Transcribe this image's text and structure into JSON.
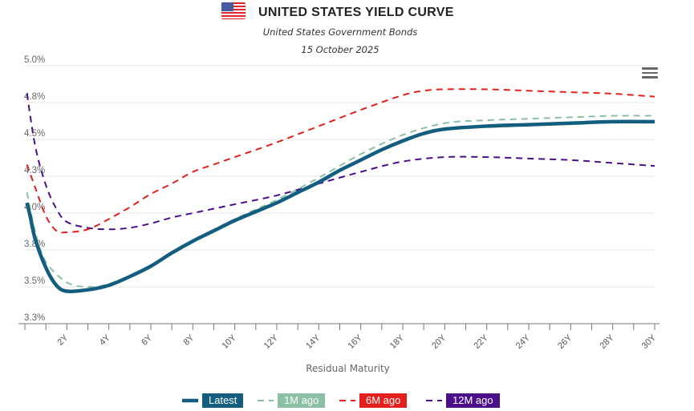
{
  "header": {
    "flag_icon": "us-flag-icon",
    "title": "UNITED STATES YIELD CURVE",
    "subtitle": "United States Government Bonds",
    "date": "15 October 2025"
  },
  "menu": {
    "icon": "hamburger-menu-icon"
  },
  "chart_data": {
    "type": "line",
    "title": "UNITED STATES YIELD CURVE",
    "subtitle": "United States Government Bonds — 15 October 2025",
    "xlabel": "Residual Maturity",
    "ylabel": "",
    "xlim": [
      0,
      30
    ],
    "ylim": [
      3.25,
      5.0
    ],
    "x_ticks": [
      2,
      4,
      6,
      8,
      10,
      12,
      14,
      16,
      18,
      20,
      22,
      24,
      26,
      28,
      30
    ],
    "x_tick_labels": [
      "2Y",
      "4Y",
      "6Y",
      "8Y",
      "10Y",
      "12Y",
      "14Y",
      "16Y",
      "18Y",
      "20Y",
      "22Y",
      "24Y",
      "26Y",
      "28Y",
      "30Y"
    ],
    "y_ticks": [
      3.25,
      3.5,
      3.75,
      4.0,
      4.25,
      4.5,
      4.75,
      5.0
    ],
    "y_tick_labels": [
      "3.3%",
      "3.5%",
      "3.8%",
      "4.0%",
      "4.3%",
      "4.5%",
      "4.8%",
      "5.0%"
    ],
    "grid": true,
    "legend_position": "bottom",
    "series": [
      {
        "name": "Latest",
        "color": "#135e7e",
        "style": "solid",
        "x": [
          0.1,
          0.25,
          0.5,
          1,
          1.5,
          2,
          3,
          4,
          5,
          6,
          7,
          8,
          9,
          10,
          11,
          12,
          13,
          14,
          15,
          16,
          17,
          18,
          19,
          20,
          22,
          24,
          26,
          28,
          30
        ],
        "y": [
          4.07,
          3.98,
          3.82,
          3.63,
          3.51,
          3.47,
          3.48,
          3.51,
          3.57,
          3.64,
          3.73,
          3.81,
          3.88,
          3.95,
          4.01,
          4.07,
          4.14,
          4.21,
          4.29,
          4.36,
          4.43,
          4.49,
          4.54,
          4.57,
          4.59,
          4.6,
          4.61,
          4.62,
          4.62
        ]
      },
      {
        "name": "1M ago",
        "color": "#8cc0a4",
        "style": "dash",
        "x": [
          0.1,
          0.5,
          1,
          2,
          3,
          4,
          6,
          8,
          10,
          12,
          14,
          16,
          18,
          20,
          22,
          24,
          26,
          28,
          30
        ],
        "y": [
          4.14,
          3.87,
          3.67,
          3.53,
          3.5,
          3.52,
          3.64,
          3.81,
          3.96,
          4.09,
          4.24,
          4.4,
          4.53,
          4.61,
          4.63,
          4.64,
          4.65,
          4.66,
          4.66
        ]
      },
      {
        "name": "6M ago",
        "color": "#e3201b",
        "style": "dash",
        "x": [
          0.1,
          0.5,
          1,
          1.5,
          2,
          3,
          4,
          5,
          6,
          7,
          8,
          9,
          10,
          12,
          14,
          16,
          18,
          19,
          20,
          22,
          24,
          26,
          28,
          30
        ],
        "y": [
          4.33,
          4.17,
          3.98,
          3.88,
          3.87,
          3.89,
          3.96,
          4.04,
          4.13,
          4.2,
          4.28,
          4.33,
          4.38,
          4.48,
          4.59,
          4.7,
          4.8,
          4.83,
          4.84,
          4.84,
          4.83,
          4.82,
          4.81,
          4.79
        ]
      },
      {
        "name": "12M ago",
        "color": "#4b0f8a",
        "style": "dash",
        "x": [
          0.1,
          0.5,
          1,
          1.5,
          2,
          3,
          4,
          5,
          6,
          7,
          8,
          9,
          10,
          12,
          14,
          16,
          18,
          20,
          22,
          24,
          26,
          28,
          30
        ],
        "y": [
          4.81,
          4.45,
          4.19,
          4.03,
          3.94,
          3.9,
          3.89,
          3.9,
          3.93,
          3.97,
          4.0,
          4.03,
          4.06,
          4.12,
          4.2,
          4.28,
          4.35,
          4.38,
          4.38,
          4.37,
          4.36,
          4.34,
          4.32
        ]
      }
    ]
  }
}
